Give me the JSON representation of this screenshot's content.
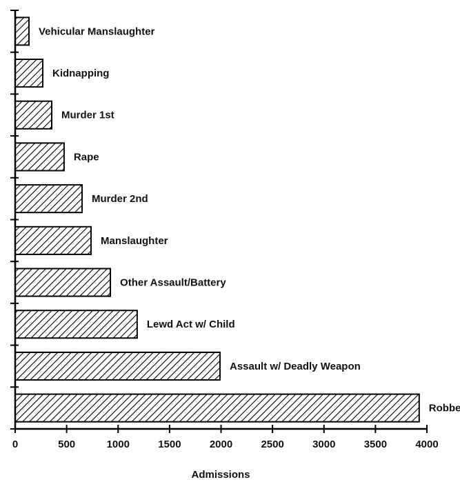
{
  "chart_data": {
    "type": "barh",
    "x_label": "Admissions",
    "categories": [
      "Vehicular Manslaughter",
      "Kidnapping",
      "Murder 1st",
      "Rape",
      "Murder 2nd",
      "Manslaughter",
      "Other Assault/Battery",
      "Lewd Act w/ Child",
      "Assault w/ Deadly Weapon",
      "Robbery"
    ],
    "values": [
      134,
      268,
      355,
      475,
      650,
      737,
      925,
      1185,
      1990,
      3925
    ],
    "color": "#000000",
    "xlim": [
      0,
      4000
    ],
    "xticks": [
      0,
      500,
      1000,
      1500,
      2000,
      2500,
      3000,
      3500,
      4000
    ]
  }
}
